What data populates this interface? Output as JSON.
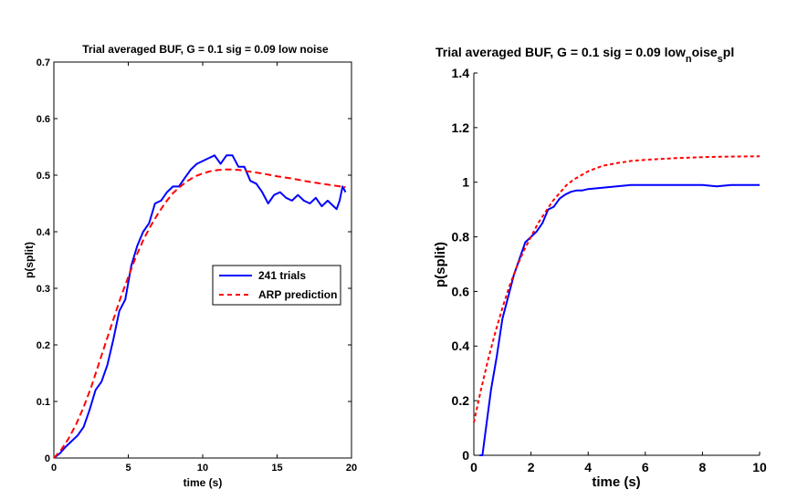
{
  "chart_data": [
    {
      "type": "line",
      "title": "Trial averaged BUF, G = 0.1 sig = 0.09 low noise",
      "xlabel": "time (s)",
      "ylabel": "p(split)",
      "xlim": [
        0,
        20
      ],
      "ylim": [
        0,
        0.7
      ],
      "xticks": [
        "0",
        "5",
        "10",
        "15",
        "20"
      ],
      "yticks": [
        "0",
        "0.1",
        "0.2",
        "0.3",
        "0.4",
        "0.5",
        "0.6",
        "0.7"
      ],
      "legend_placement": "middle-right",
      "series": [
        {
          "name": "241 trials",
          "color": "#0000ff",
          "style": "solid",
          "x": [
            0,
            0.4,
            0.8,
            1.2,
            1.6,
            2.0,
            2.4,
            2.8,
            3.2,
            3.6,
            4.0,
            4.4,
            4.8,
            5.2,
            5.6,
            6.0,
            6.4,
            6.8,
            7.2,
            7.6,
            8.0,
            8.4,
            8.8,
            9.2,
            9.6,
            10.0,
            10.4,
            10.8,
            11.2,
            11.6,
            12.0,
            12.4,
            12.8,
            13.2,
            13.6,
            14.0,
            14.4,
            14.8,
            15.2,
            15.6,
            16.0,
            16.4,
            16.8,
            17.2,
            17.6,
            18.0,
            18.4,
            18.8,
            19.0,
            19.2,
            19.4,
            19.6
          ],
          "y": [
            0.0,
            0.008,
            0.02,
            0.03,
            0.04,
            0.055,
            0.085,
            0.12,
            0.135,
            0.165,
            0.21,
            0.26,
            0.28,
            0.34,
            0.375,
            0.4,
            0.415,
            0.45,
            0.455,
            0.47,
            0.48,
            0.48,
            0.495,
            0.51,
            0.52,
            0.525,
            0.53,
            0.535,
            0.52,
            0.535,
            0.535,
            0.515,
            0.515,
            0.49,
            0.485,
            0.47,
            0.45,
            0.465,
            0.47,
            0.46,
            0.455,
            0.465,
            0.455,
            0.45,
            0.46,
            0.445,
            0.455,
            0.445,
            0.44,
            0.455,
            0.48,
            0.47
          ]
        },
        {
          "name": "ARP prediction",
          "color": "#ff0000",
          "style": "dashed",
          "x": [
            0,
            0.5,
            1,
            1.5,
            2,
            2.5,
            3,
            3.5,
            4,
            4.5,
            5,
            5.5,
            6,
            6.5,
            7,
            7.5,
            8,
            8.5,
            9,
            9.5,
            10,
            10.5,
            11,
            11.5,
            12,
            12.5,
            13,
            14,
            15,
            16,
            17,
            18,
            19,
            19.6
          ],
          "y": [
            0.0,
            0.015,
            0.035,
            0.06,
            0.09,
            0.125,
            0.165,
            0.205,
            0.245,
            0.285,
            0.32,
            0.355,
            0.385,
            0.41,
            0.432,
            0.452,
            0.468,
            0.48,
            0.49,
            0.498,
            0.503,
            0.507,
            0.509,
            0.51,
            0.51,
            0.509,
            0.507,
            0.503,
            0.498,
            0.494,
            0.489,
            0.485,
            0.481,
            0.479
          ]
        }
      ]
    },
    {
      "type": "line",
      "title": "Trial averaged BUF, G = 0.1 sig = 0.09 low",
      "title_sub1": "n",
      "title_mid": "oise",
      "title_sub2": "s",
      "title_end": "pl",
      "xlabel": "time (s)",
      "ylabel": "p(split)",
      "xlim": [
        0,
        10
      ],
      "ylim": [
        0,
        1.4
      ],
      "xticks": [
        "0",
        "2",
        "4",
        "6",
        "8",
        "10"
      ],
      "yticks": [
        "0",
        "0.2",
        "0.4",
        "0.6",
        "0.8",
        "1",
        "1.2",
        "1.4"
      ],
      "series": [
        {
          "color": "#0000ff",
          "style": "solid",
          "x": [
            0.2,
            0.3,
            0.4,
            0.6,
            0.8,
            1.0,
            1.2,
            1.4,
            1.6,
            1.8,
            2.0,
            2.2,
            2.4,
            2.6,
            2.8,
            3.0,
            3.2,
            3.4,
            3.6,
            3.8,
            4.0,
            4.5,
            5.0,
            5.5,
            6.0,
            6.5,
            7.0,
            7.5,
            8.0,
            8.5,
            9.0,
            9.5,
            10.0
          ],
          "y": [
            0.0,
            0.0,
            0.08,
            0.24,
            0.36,
            0.5,
            0.58,
            0.66,
            0.72,
            0.78,
            0.8,
            0.82,
            0.85,
            0.9,
            0.91,
            0.94,
            0.955,
            0.965,
            0.97,
            0.97,
            0.975,
            0.98,
            0.985,
            0.99,
            0.99,
            0.99,
            0.99,
            0.99,
            0.99,
            0.985,
            0.99,
            0.99,
            0.99
          ]
        },
        {
          "color": "#ff0000",
          "style": "dashed",
          "x": [
            0,
            0.25,
            0.5,
            0.75,
            1.0,
            1.25,
            1.5,
            1.75,
            2.0,
            2.25,
            2.5,
            2.75,
            3.0,
            3.25,
            3.5,
            4.0,
            4.5,
            5.0,
            5.5,
            6.0,
            7.0,
            8.0,
            9.0,
            10.0
          ],
          "y": [
            0.12,
            0.24,
            0.35,
            0.45,
            0.54,
            0.62,
            0.69,
            0.75,
            0.8,
            0.85,
            0.89,
            0.93,
            0.96,
            0.99,
            1.01,
            1.04,
            1.06,
            1.07,
            1.078,
            1.082,
            1.088,
            1.092,
            1.094,
            1.095
          ]
        }
      ]
    }
  ]
}
